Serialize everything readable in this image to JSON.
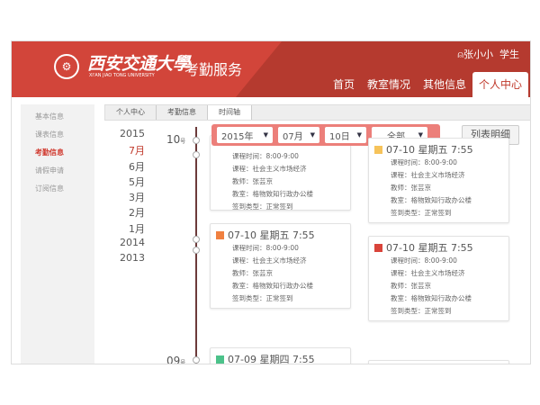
{
  "header": {
    "brand": "西安交通大學",
    "brand_en": "XI'AN JIAO TONG UNIVERSITY",
    "app_name": "考勤服务",
    "user": "张小小",
    "role": "学生",
    "nav": [
      "首页",
      "教室情况",
      "其他信息",
      "个人中心"
    ]
  },
  "sidebar": [
    "基本信息",
    "课表信息",
    "考勤信息",
    "请假申请",
    "订阅信息"
  ],
  "breadcrumb": [
    "个人中心",
    "考勤信息",
    "时间轴"
  ],
  "years": [
    "2015",
    "7月",
    "6月",
    "5月",
    "3月",
    "2月",
    "1月",
    "2014",
    "2013"
  ],
  "days": [
    {
      "num": "10",
      "unit": "号"
    },
    {
      "num": "09",
      "unit": "号"
    }
  ],
  "filter": {
    "year": "2015年",
    "month": "07月",
    "day": "10日",
    "type": "全部",
    "list_button": "列表明细"
  },
  "colors": {
    "accent": "#c0392b",
    "yellow": "#f6c35a",
    "orange": "#f08040",
    "red": "#d9443a",
    "green": "#4cc28a"
  },
  "cards": [
    {
      "title": "07-10 星期五 7:55",
      "rows": [
        "课程时间：8:00-9:00",
        "课程：社会主义市场经济",
        "教师：张芸京",
        "教室：格物致知行政办公楼",
        "签到类型：正常签到"
      ]
    },
    {
      "title": "07-10 星期五 7:55",
      "rows": [
        "课程时间：8:00-9:00",
        "课程：社会主义市场经济",
        "教师：张芸京",
        "教室：格物致知行政办公楼",
        "签到类型：正常签到"
      ]
    },
    {
      "title": "07-10 星期五 7:55",
      "rows": [
        "课程时间：8:00-9:00",
        "课程：社会主义市场经济",
        "教师：张芸京",
        "教室：格物致知行政办公楼",
        "签到类型：正常签到"
      ]
    },
    {
      "title": "07-10 星期五 7:55",
      "rows": [
        "课程时间：8:00-9:00",
        "课程：社会主义市场经济",
        "教师：张芸京",
        "教室：格物致知行政办公楼",
        "签到类型：正常签到"
      ]
    },
    {
      "title": "07-09 星期四 7:55",
      "rows": []
    }
  ]
}
